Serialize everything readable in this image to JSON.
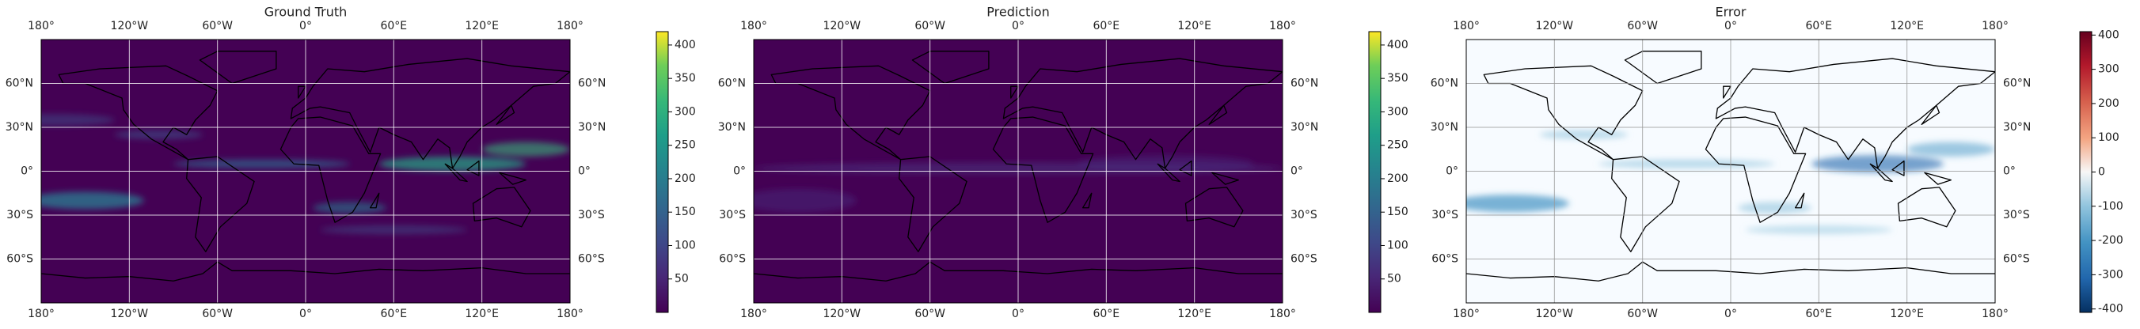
{
  "figure": {
    "map": {
      "xlim": [
        -180,
        180
      ],
      "ylim": [
        -90,
        90
      ],
      "xticks": [
        {
          "value": -180,
          "label": "180°"
        },
        {
          "value": -120,
          "label": "120°W"
        },
        {
          "value": -60,
          "label": "60°W"
        },
        {
          "value": 0,
          "label": "0°"
        },
        {
          "value": 60,
          "label": "60°E"
        },
        {
          "value": 120,
          "label": "120°E"
        },
        {
          "value": 180,
          "label": "180°"
        }
      ],
      "yticks": [
        {
          "value": 60,
          "label": "60°N"
        },
        {
          "value": 30,
          "label": "30°N"
        },
        {
          "value": 0,
          "label": "0°"
        },
        {
          "value": -30,
          "label": "30°S"
        },
        {
          "value": -60,
          "label": "60°S"
        }
      ]
    },
    "panels": [
      {
        "title": "Ground Truth",
        "colorbar": {
          "cmap": "viridis",
          "lim": [
            0,
            420
          ],
          "ticks": [
            50,
            100,
            150,
            200,
            250,
            300,
            350,
            400
          ]
        }
      },
      {
        "title": "Prediction",
        "colorbar": {
          "cmap": "viridis",
          "lim": [
            0,
            420
          ],
          "ticks": [
            50,
            100,
            150,
            200,
            250,
            300,
            350,
            400
          ]
        }
      },
      {
        "title": "Error",
        "colorbar": {
          "cmap": "RdBu_r",
          "lim": [
            -410,
            410
          ],
          "ticks": [
            -400,
            -300,
            -200,
            -100,
            0,
            100,
            200,
            300,
            400
          ]
        }
      }
    ]
  }
}
